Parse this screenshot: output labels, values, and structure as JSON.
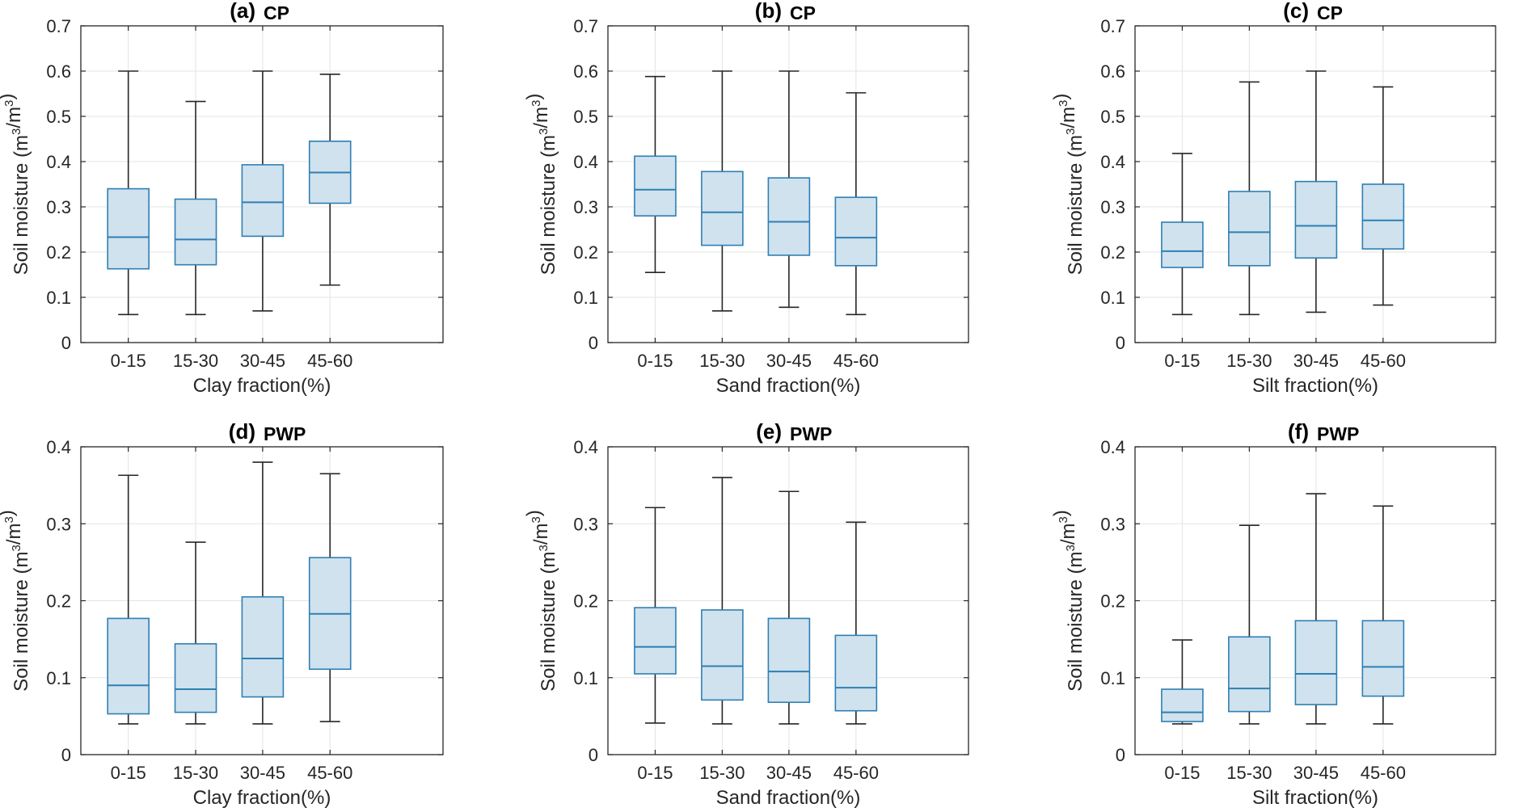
{
  "colors": {
    "box_fill": "#cfe2ee",
    "box_edge": "#2f7fb3",
    "median": "#2f7fb3",
    "whisker": "#262626",
    "grid": "#e3e3e3",
    "axes": "#262626"
  },
  "chart_data": [
    {
      "type": "boxplot",
      "panel_letter": "(a)",
      "panel_tag": "CP",
      "xlabel": "Clay fraction(%)",
      "ylabel": "Soil moisture (m³/m³)",
      "ylim": [
        0,
        0.7
      ],
      "yticks": [
        "0",
        "0.1",
        "0.2",
        "0.3",
        "0.4",
        "0.5",
        "0.6",
        "0.7"
      ],
      "categories": [
        "0-15",
        "15-30",
        "30-45",
        "45-60"
      ],
      "boxes": [
        {
          "min": 0.062,
          "q1": 0.163,
          "median": 0.233,
          "q3": 0.34,
          "max": 0.6
        },
        {
          "min": 0.062,
          "q1": 0.172,
          "median": 0.228,
          "q3": 0.317,
          "max": 0.533
        },
        {
          "min": 0.07,
          "q1": 0.235,
          "median": 0.31,
          "q3": 0.393,
          "max": 0.6
        },
        {
          "min": 0.127,
          "q1": 0.308,
          "median": 0.376,
          "q3": 0.445,
          "max": 0.593
        }
      ]
    },
    {
      "type": "boxplot",
      "panel_letter": "(b)",
      "panel_tag": "CP",
      "xlabel": "Sand fraction(%)",
      "ylabel": "Soil moisture (m³/m³)",
      "ylim": [
        0,
        0.7
      ],
      "yticks": [
        "0",
        "0.1",
        "0.2",
        "0.3",
        "0.4",
        "0.5",
        "0.6",
        "0.7"
      ],
      "categories": [
        "0-15",
        "15-30",
        "30-45",
        "45-60"
      ],
      "boxes": [
        {
          "min": 0.155,
          "q1": 0.28,
          "median": 0.338,
          "q3": 0.412,
          "max": 0.588
        },
        {
          "min": 0.07,
          "q1": 0.215,
          "median": 0.288,
          "q3": 0.378,
          "max": 0.6
        },
        {
          "min": 0.078,
          "q1": 0.193,
          "median": 0.267,
          "q3": 0.364,
          "max": 0.6
        },
        {
          "min": 0.062,
          "q1": 0.17,
          "median": 0.232,
          "q3": 0.321,
          "max": 0.552
        }
      ]
    },
    {
      "type": "boxplot",
      "panel_letter": "(c)",
      "panel_tag": "CP",
      "xlabel": "Silt fraction(%)",
      "ylabel": "Soil moisture (m³/m³)",
      "ylim": [
        0,
        0.7
      ],
      "yticks": [
        "0",
        "0.1",
        "0.2",
        "0.3",
        "0.4",
        "0.5",
        "0.6",
        "0.7"
      ],
      "categories": [
        "0-15",
        "15-30",
        "30-45",
        "45-60"
      ],
      "boxes": [
        {
          "min": 0.062,
          "q1": 0.166,
          "median": 0.202,
          "q3": 0.266,
          "max": 0.418
        },
        {
          "min": 0.062,
          "q1": 0.17,
          "median": 0.244,
          "q3": 0.334,
          "max": 0.576
        },
        {
          "min": 0.067,
          "q1": 0.187,
          "median": 0.258,
          "q3": 0.356,
          "max": 0.6
        },
        {
          "min": 0.083,
          "q1": 0.207,
          "median": 0.27,
          "q3": 0.35,
          "max": 0.565
        }
      ]
    },
    {
      "type": "boxplot",
      "panel_letter": "(d)",
      "panel_tag": "PWP",
      "xlabel": "Clay fraction(%)",
      "ylabel": "Soil moisture (m³/m³)",
      "ylim": [
        0,
        0.4
      ],
      "yticks": [
        "0",
        "0.1",
        "0.2",
        "0.3",
        "0.4"
      ],
      "categories": [
        "0-15",
        "15-30",
        "30-45",
        "45-60"
      ],
      "boxes": [
        {
          "min": 0.04,
          "q1": 0.053,
          "median": 0.09,
          "q3": 0.177,
          "max": 0.363
        },
        {
          "min": 0.04,
          "q1": 0.055,
          "median": 0.085,
          "q3": 0.144,
          "max": 0.276
        },
        {
          "min": 0.04,
          "q1": 0.075,
          "median": 0.125,
          "q3": 0.205,
          "max": 0.38
        },
        {
          "min": 0.043,
          "q1": 0.111,
          "median": 0.183,
          "q3": 0.256,
          "max": 0.365
        }
      ]
    },
    {
      "type": "boxplot",
      "panel_letter": "(e)",
      "panel_tag": "PWP",
      "xlabel": "Sand fraction(%)",
      "ylabel": "Soil moisture (m³/m³)",
      "ylim": [
        0,
        0.4
      ],
      "yticks": [
        "0",
        "0.1",
        "0.2",
        "0.3",
        "0.4"
      ],
      "categories": [
        "0-15",
        "15-30",
        "30-45",
        "45-60"
      ],
      "boxes": [
        {
          "min": 0.041,
          "q1": 0.105,
          "median": 0.14,
          "q3": 0.191,
          "max": 0.321
        },
        {
          "min": 0.04,
          "q1": 0.071,
          "median": 0.115,
          "q3": 0.188,
          "max": 0.36
        },
        {
          "min": 0.04,
          "q1": 0.068,
          "median": 0.108,
          "q3": 0.177,
          "max": 0.342
        },
        {
          "min": 0.04,
          "q1": 0.057,
          "median": 0.087,
          "q3": 0.155,
          "max": 0.302
        }
      ]
    },
    {
      "type": "boxplot",
      "panel_letter": "(f)",
      "panel_tag": "PWP",
      "xlabel": "Silt fraction(%)",
      "ylabel": "Soil moisture (m³/m³)",
      "ylim": [
        0,
        0.4
      ],
      "yticks": [
        "0",
        "0.1",
        "0.2",
        "0.3",
        "0.4"
      ],
      "categories": [
        "0-15",
        "15-30",
        "30-45",
        "45-60"
      ],
      "boxes": [
        {
          "min": 0.04,
          "q1": 0.043,
          "median": 0.055,
          "q3": 0.085,
          "max": 0.149
        },
        {
          "min": 0.04,
          "q1": 0.056,
          "median": 0.086,
          "q3": 0.153,
          "max": 0.298
        },
        {
          "min": 0.04,
          "q1": 0.065,
          "median": 0.105,
          "q3": 0.174,
          "max": 0.339
        },
        {
          "min": 0.04,
          "q1": 0.076,
          "median": 0.114,
          "q3": 0.174,
          "max": 0.323
        }
      ]
    }
  ]
}
